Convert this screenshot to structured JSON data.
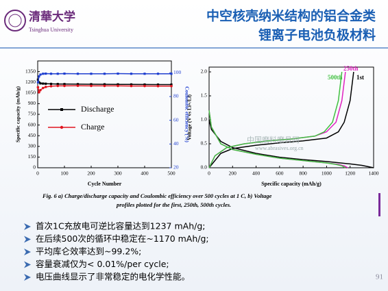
{
  "header": {
    "logo_cn": "清華大学",
    "logo_en": "Tsinghua University",
    "title": [
      "中空核壳纳米结构的铝合金类",
      "锂离子电池负极材料"
    ]
  },
  "chart_data": [
    {
      "type": "line",
      "xlabel": "Cycle Number",
      "ylabel": "Specific capacity (mAh/g)",
      "y2label": "Coulombic efficiency (%)",
      "xlim": [
        0,
        500
      ],
      "xticks": [
        0,
        100,
        200,
        300,
        400,
        500
      ],
      "ylim": [
        0,
        1500
      ],
      "yticks": [
        0,
        150,
        300,
        450,
        600,
        750,
        900,
        1050,
        1200,
        1350
      ],
      "y2lim": [
        20,
        110
      ],
      "y2ticks": [
        20,
        40,
        60,
        80,
        100
      ],
      "series": [
        {
          "name": "Discharge",
          "color": "#000000",
          "marker": "square",
          "x": [
            1,
            5,
            10,
            20,
            30,
            50,
            75,
            100,
            150,
            200,
            250,
            300,
            350,
            400,
            450,
            500
          ],
          "values": [
            1237,
            1200,
            1185,
            1182,
            1180,
            1178,
            1176,
            1175,
            1174,
            1173,
            1172,
            1171,
            1170,
            1169,
            1168,
            1168
          ]
        },
        {
          "name": "Charge",
          "color": "#e0141e",
          "marker": "circle",
          "x": [
            1,
            5,
            10,
            20,
            30,
            50,
            75,
            100,
            150,
            200,
            250,
            300,
            350,
            400,
            450,
            500
          ],
          "values": [
            1130,
            1060,
            1090,
            1120,
            1135,
            1145,
            1150,
            1150,
            1152,
            1150,
            1150,
            1150,
            1148,
            1148,
            1147,
            1147
          ]
        },
        {
          "color": "#1f3fd0",
          "marker": "square",
          "axis": "y2",
          "x": [
            1,
            5,
            10,
            20,
            30,
            50,
            75,
            100,
            150,
            200,
            250,
            300,
            350,
            400,
            450,
            500
          ],
          "values": [
            92,
            97,
            98.5,
            99.2,
            99.3,
            99.2,
            99.2,
            99.3,
            99.2,
            99.2,
            99.2,
            99.3,
            99.2,
            99.2,
            99.2,
            99.2
          ]
        }
      ]
    },
    {
      "type": "line",
      "xlabel": "Specific capacity (mAh/g)",
      "ylabel": "Voltage (V vs Li+/Li)",
      "xlim": [
        0,
        1400
      ],
      "xticks": [
        0,
        200,
        400,
        600,
        800,
        1000,
        1200,
        1400
      ],
      "ylim": [
        0,
        2.1
      ],
      "yticks": [
        {
          "value": 0,
          "label": "0.0"
        },
        {
          "value": 0.5,
          "label": "0.5"
        },
        {
          "value": 1,
          "label": "1.0"
        },
        {
          "value": 1.5,
          "label": "1.5"
        },
        {
          "value": 2,
          "label": "2.0"
        }
      ],
      "series": [
        {
          "name": "1st",
          "color": "#000000",
          "x": [
            0,
            20,
            100,
            200,
            400,
            600,
            800,
            1000,
            1200,
            1300,
            1400,
            null,
            0,
            100,
            200,
            400,
            600,
            800,
            1000,
            1100,
            1150,
            1200,
            1230
          ],
          "values": [
            1.0,
            0.8,
            0.55,
            0.42,
            0.3,
            0.22,
            0.17,
            0.13,
            0.08,
            0.05,
            0.0,
            null,
            0.0,
            0.3,
            0.4,
            0.47,
            0.52,
            0.56,
            0.62,
            0.75,
            0.95,
            1.4,
            2.0
          ]
        },
        {
          "name": "250th",
          "color": "#e020c0",
          "x": [
            0,
            20,
            100,
            200,
            400,
            600,
            800,
            1000,
            1100,
            1150,
            1180,
            null,
            0,
            50,
            150,
            300,
            500,
            700,
            900,
            1000,
            1080,
            1130,
            1160
          ],
          "values": [
            1.2,
            0.85,
            0.5,
            0.38,
            0.28,
            0.2,
            0.15,
            0.1,
            0.07,
            0.04,
            0.0,
            null,
            0.0,
            0.25,
            0.42,
            0.5,
            0.56,
            0.6,
            0.66,
            0.75,
            0.95,
            1.4,
            2.0
          ]
        },
        {
          "name": "500th",
          "color": "#40c040",
          "x": [
            0,
            20,
            100,
            200,
            400,
            600,
            800,
            1000,
            1080,
            1130,
            1160,
            null,
            0,
            50,
            150,
            300,
            500,
            700,
            900,
            980,
            1050,
            1100,
            1130
          ],
          "values": [
            1.2,
            0.85,
            0.5,
            0.38,
            0.28,
            0.2,
            0.15,
            0.1,
            0.07,
            0.04,
            0.0,
            null,
            0.0,
            0.25,
            0.42,
            0.5,
            0.56,
            0.6,
            0.66,
            0.75,
            0.95,
            1.4,
            2.0
          ]
        }
      ]
    }
  ],
  "watermark": [
    "中国磨料磨具网",
    "www.abrasives.org.cn"
  ],
  "caption": [
    "Fig. 6 a) Charge/discharge capacity and Coulombic efficiency over 500 cycles at 1 C, b) Voltage",
    "profiles plotted for the first, 250th, 500th cycles."
  ],
  "bullets": [
    "首次1C充放电可逆比容量达到1237 mAh/g;",
    "在后续500次的循环中稳定在~1170 mAh/g;",
    "平均库仑效率达到~99.2%;",
    "容量衰减仅为< 0.01%/per cycle;",
    "电压曲线显示了非常稳定的电化学性能。"
  ],
  "page_number": "91"
}
